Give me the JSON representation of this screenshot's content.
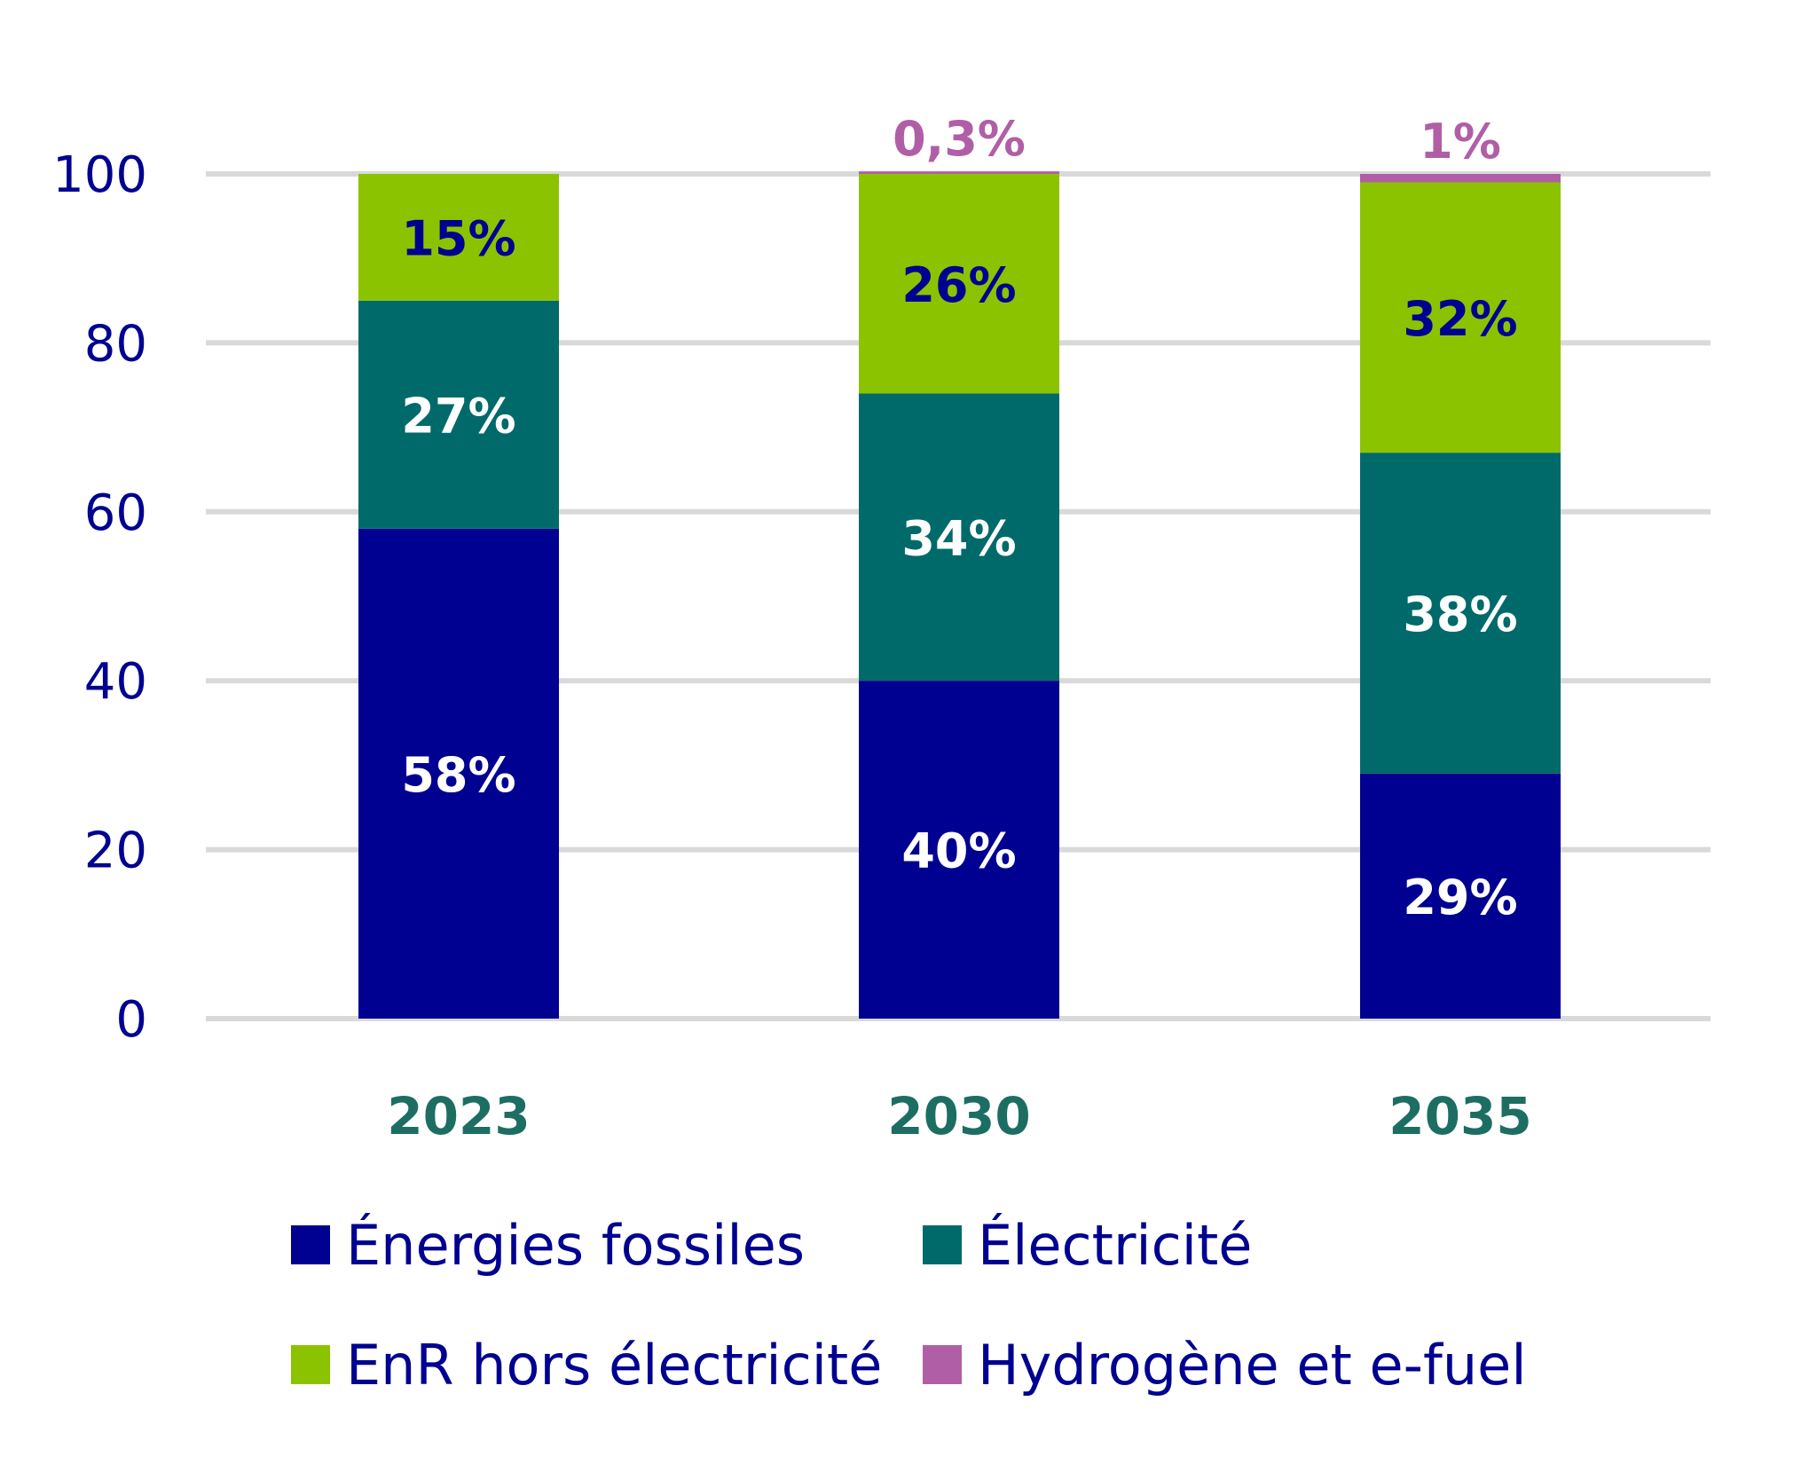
{
  "chart_data": {
    "type": "bar",
    "stacked": true,
    "title": "",
    "xlabel": "",
    "ylabel": "",
    "ylim": [
      0,
      100
    ],
    "yticks": [
      0,
      20,
      40,
      60,
      80,
      100
    ],
    "grid": true,
    "legend_position": "bottom",
    "categories": [
      "2023",
      "2030",
      "2035"
    ],
    "series": [
      {
        "name": "Énergies fossiles",
        "color": "#000091",
        "label_color": "#ffffff",
        "values": [
          58,
          40,
          29
        ],
        "labels": [
          "58%",
          "40%",
          "29%"
        ]
      },
      {
        "name": "Électricité",
        "color": "#006a6a",
        "label_color": "#ffffff",
        "values": [
          27,
          34,
          38
        ],
        "labels": [
          "27%",
          "34%",
          "38%"
        ]
      },
      {
        "name": "EnR hors électricité",
        "color": "#8cc300",
        "label_color": "#000091",
        "values": [
          15,
          26,
          32
        ],
        "labels": [
          "15%",
          "26%",
          "32%"
        ]
      },
      {
        "name": "Hydrogène et e-fuel",
        "color": "#b05fa6",
        "label_color": "#b05fa6",
        "values": [
          0,
          0.3,
          1
        ],
        "labels": [
          "",
          "0,3%",
          "1%"
        ]
      }
    ]
  }
}
